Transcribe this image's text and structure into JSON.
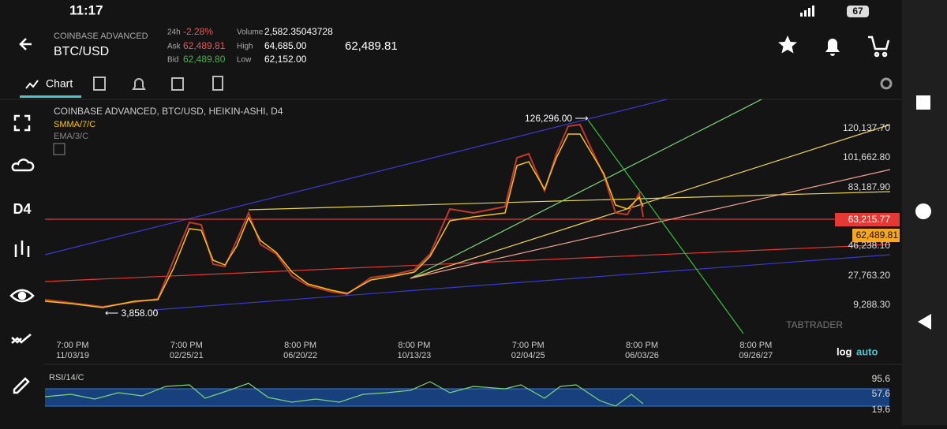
{
  "status_bar": {
    "time": "11:17",
    "battery": "67"
  },
  "header": {
    "exchange": "COINBASE ADVANCED",
    "pair": "BTC/USD",
    "change_label": "24h",
    "change": "-2.28%",
    "ask_label": "Ask",
    "ask": "62,489.81",
    "bid_label": "Bid",
    "bid": "62,489.80",
    "volume_label": "Volume",
    "volume": "2,582.35043728",
    "high_label": "High",
    "high": "64,685.00",
    "low_label": "Low",
    "low": "62,152.00",
    "last": "62,489.81"
  },
  "tabs": {
    "chart": "Chart"
  },
  "sidebar": {
    "timeframe": "D4"
  },
  "chart": {
    "title": "COINBASE ADVANCED, BTC/USD, HEIKIN-ASHI, D4",
    "indicators": [
      "SMMA/7/C",
      "EMA/3/C"
    ],
    "annotations": [
      "126,296.00 ⟶",
      "⟵ 3,858.00"
    ],
    "price_labels": [
      "120,137.70",
      "101,662.80",
      "83,187.90",
      "46,238.10",
      "27,763.20",
      "9,288.30"
    ],
    "markers": [
      "63,215.77",
      "62,489.81"
    ],
    "x_labels": [
      {
        "time": "7:00 PM",
        "date": "11/03/19"
      },
      {
        "time": "7:00 PM",
        "date": "02/25/21"
      },
      {
        "time": "8:00 PM",
        "date": "06/20/22"
      },
      {
        "time": "8:00 PM",
        "date": "10/13/23"
      },
      {
        "time": "7:00 PM",
        "date": "02/04/25"
      },
      {
        "time": "8:00 PM",
        "date": "06/03/26"
      },
      {
        "time": "8:00 PM",
        "date": "09/26/27"
      }
    ],
    "scale_buttons": [
      "log",
      "auto"
    ],
    "watermark": "TABTRADER"
  },
  "rsi": {
    "label": "RSI/14/C",
    "levels": [
      "95.6",
      "57.6",
      "19.6"
    ]
  }
}
